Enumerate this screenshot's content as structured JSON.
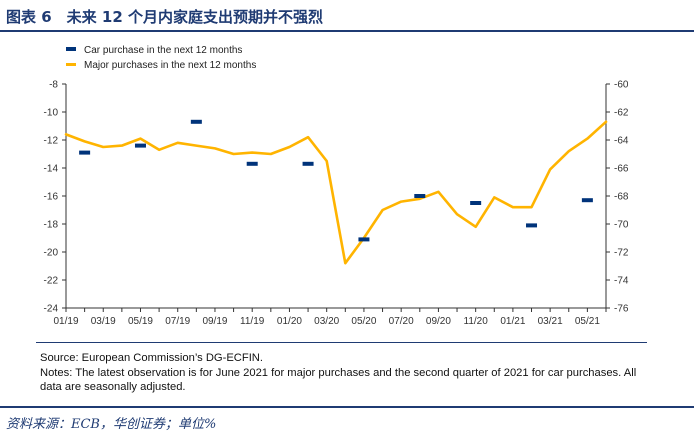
{
  "figure_title": "图表 6　未来 12 个月内家庭支出预期并不强烈",
  "footer": "资料来源：ECB，华创证券；单位%",
  "notes": {
    "source": "Source: European Commission’s DG-ECFIN.",
    "text": "Notes: The latest observation is for June 2021 for major purchases and the second quarter of 2021 for car purchases. All data are seasonally adjusted."
  },
  "colors": {
    "car": "#00337a",
    "major": "#ffb400",
    "axis": "#333333",
    "accent": "#1f3b73"
  },
  "chart_data": {
    "type": "line",
    "title": "",
    "x_labels": [
      "01/19",
      "03/19",
      "05/19",
      "07/19",
      "09/19",
      "11/19",
      "01/20",
      "03/20",
      "05/20",
      "07/20",
      "09/20",
      "11/20",
      "01/21",
      "03/21",
      "05/21"
    ],
    "x_range": [
      0,
      29
    ],
    "left_axis": {
      "range": [
        -24,
        -8
      ],
      "ticks": [
        -24,
        -22,
        -20,
        -18,
        -16,
        -14,
        -12,
        -10,
        -8
      ]
    },
    "right_axis": {
      "range": [
        -76,
        -60
      ],
      "ticks": [
        -76,
        -74,
        -72,
        -70,
        -68,
        -66,
        -64,
        -62,
        -60
      ]
    },
    "legend": {
      "position": "top-left"
    },
    "series": [
      {
        "name": "Car purchase in the next 12 months",
        "axis": "left",
        "style": "dash-markers",
        "x": [
          1,
          4,
          7,
          10,
          13,
          16,
          19,
          22,
          25,
          28
        ],
        "values": [
          -12.9,
          -12.4,
          -10.7,
          -13.7,
          -13.7,
          -19.1,
          -16.0,
          -16.5,
          -18.1,
          -16.3
        ]
      },
      {
        "name": "Major purchases in the next 12 months",
        "axis": "right",
        "style": "line",
        "x": [
          0,
          1,
          2,
          3,
          4,
          5,
          6,
          7,
          8,
          9,
          10,
          11,
          12,
          13,
          14,
          15,
          16,
          17,
          18,
          19,
          20,
          21,
          22,
          23,
          24,
          25,
          26,
          27,
          28,
          29
        ],
        "values": [
          -63.6,
          -64.1,
          -64.5,
          -64.4,
          -63.9,
          -64.7,
          -64.2,
          -64.4,
          -64.6,
          -65.0,
          -64.9,
          -65.0,
          -64.5,
          -63.8,
          -65.5,
          -72.8,
          -71.0,
          -69.0,
          -68.4,
          -68.2,
          -67.7,
          -69.3,
          -70.2,
          -68.1,
          -68.8,
          -68.8,
          -66.1,
          -64.8,
          -63.9,
          -62.7
        ]
      }
    ]
  }
}
